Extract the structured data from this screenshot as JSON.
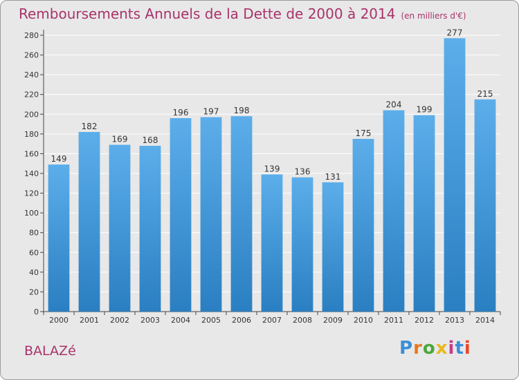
{
  "header": {
    "title": "Remboursements Annuels de la Dette de 2000 à 2014",
    "unit": "(en milliers d'€)"
  },
  "footer": {
    "commune": "BALAZé",
    "logo_text": "Proxiti"
  },
  "colors": {
    "title": "#a8336a",
    "bar_top": "#5caeea",
    "bar_bottom": "#2a7fc2",
    "grid": "#ffffff",
    "plot_bg": "#e8e8e8",
    "logo_letters": [
      "#3a8fd8",
      "#e8781e",
      "#4aa83a",
      "#e8b81e",
      "#c83a8a",
      "#3a8fd8",
      "#e84a2a"
    ]
  },
  "chart_data": {
    "type": "bar",
    "title": "Remboursements Annuels de la Dette de 2000 à 2014",
    "xlabel": "",
    "ylabel": "",
    "categories": [
      "2000",
      "2001",
      "2002",
      "2003",
      "2004",
      "2005",
      "2006",
      "2007",
      "2008",
      "2009",
      "2010",
      "2011",
      "2012",
      "2013",
      "2014"
    ],
    "values": [
      149,
      182,
      169,
      168,
      196,
      197,
      198,
      139,
      136,
      131,
      175,
      204,
      199,
      277,
      215
    ],
    "ylim": [
      0,
      280
    ],
    "yticks": [
      0,
      20,
      40,
      60,
      80,
      100,
      120,
      140,
      160,
      180,
      200,
      220,
      240,
      260,
      280
    ],
    "grid": true,
    "legend": "none"
  }
}
